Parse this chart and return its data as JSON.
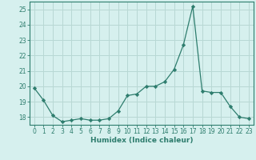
{
  "x": [
    0,
    1,
    2,
    3,
    4,
    5,
    6,
    7,
    8,
    9,
    10,
    11,
    12,
    13,
    14,
    15,
    16,
    17,
    18,
    19,
    20,
    21,
    22,
    23
  ],
  "y": [
    19.9,
    19.1,
    18.1,
    17.7,
    17.8,
    17.9,
    17.8,
    17.8,
    17.9,
    18.4,
    19.4,
    19.5,
    20.0,
    20.0,
    20.3,
    21.1,
    22.7,
    25.2,
    19.7,
    19.6,
    19.6,
    18.7,
    18.0,
    17.9
  ],
  "line_color": "#2e7d6e",
  "marker": "D",
  "marker_size": 2.2,
  "bg_color": "#d6f0ee",
  "grid_color": "#b8d8d4",
  "xlabel": "Humidex (Indice chaleur)",
  "ylabel_ticks": [
    18,
    19,
    20,
    21,
    22,
    23,
    24,
    25
  ],
  "xlim": [
    -0.5,
    23.5
  ],
  "ylim": [
    17.5,
    25.5
  ],
  "tick_fontsize": 5.5,
  "xlabel_fontsize": 6.5
}
